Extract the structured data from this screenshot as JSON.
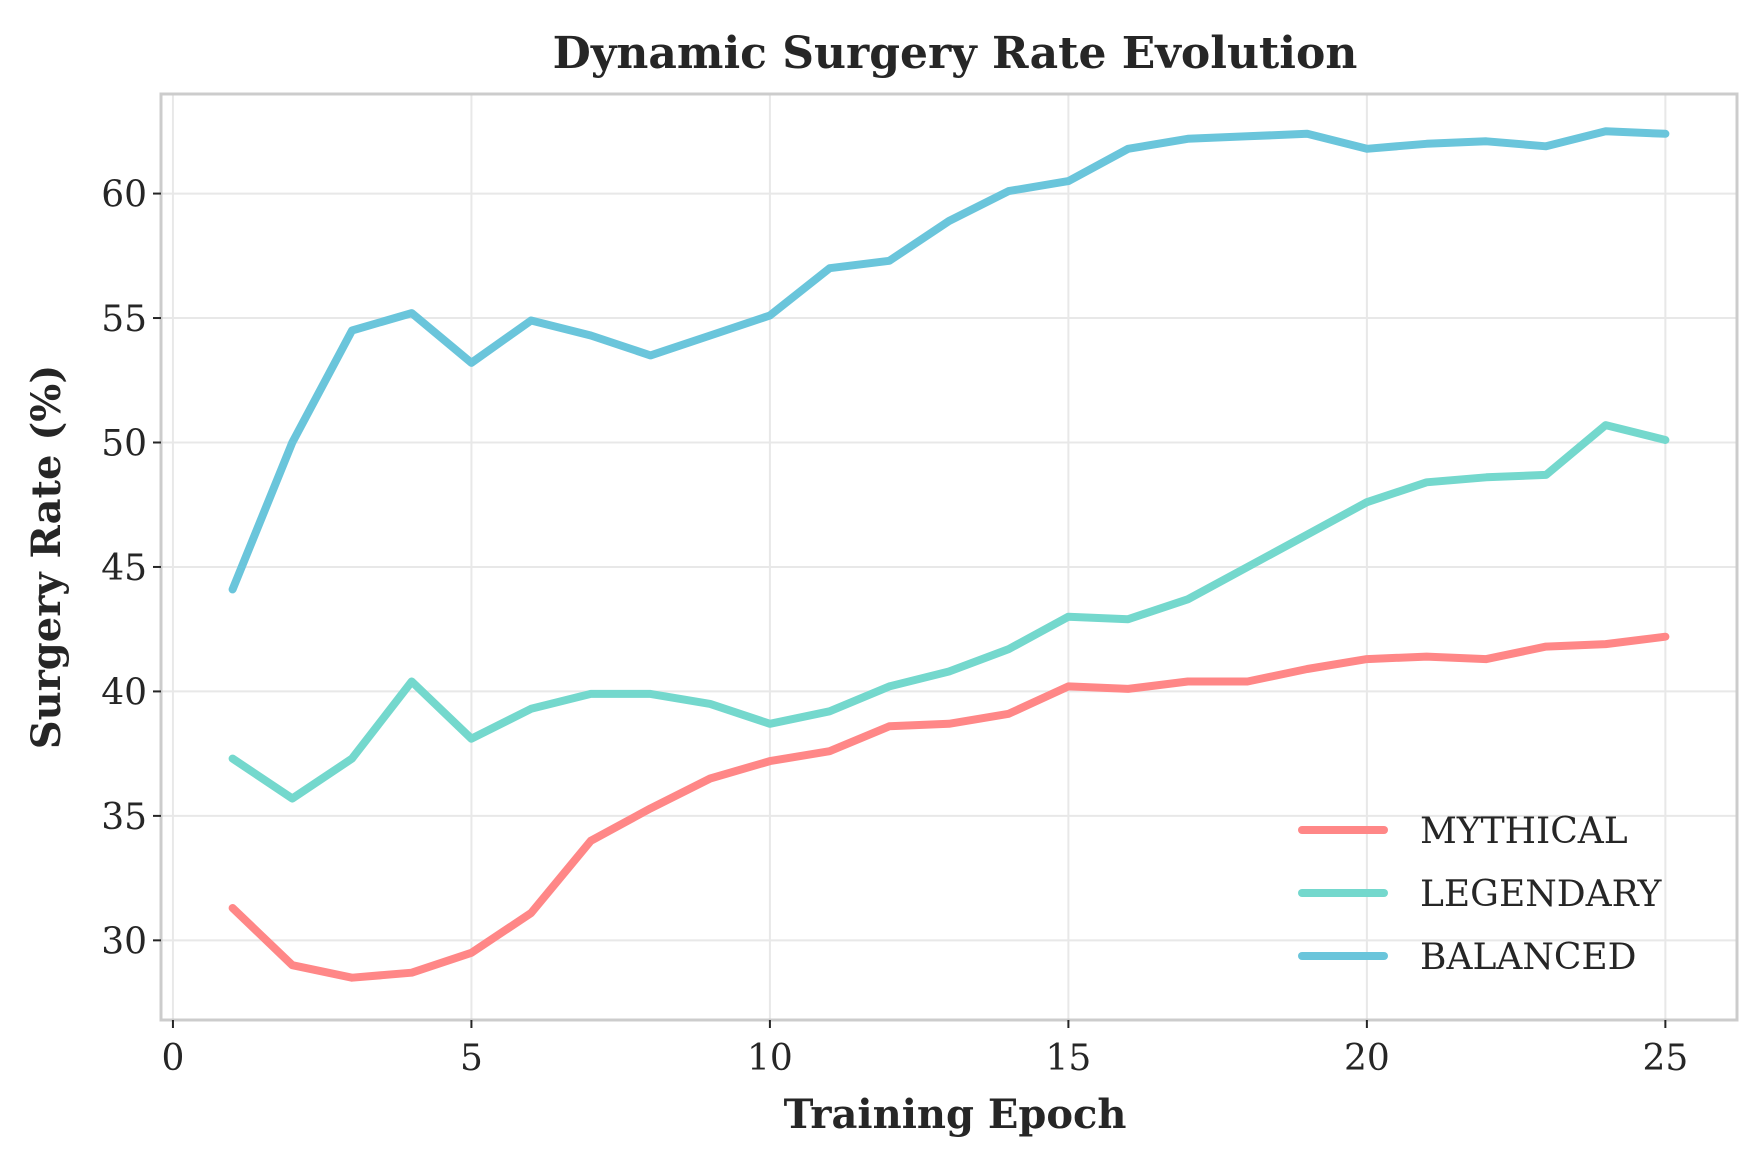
{
  "chart_data": {
    "type": "line",
    "title": "Dynamic Surgery Rate Evolution",
    "xlabel": "Training Epoch",
    "ylabel": "Surgery Rate (%)",
    "xlim": [
      -0.2,
      26.2
    ],
    "ylim": [
      26.8,
      64.0
    ],
    "xticks": [
      0,
      5,
      10,
      15,
      20,
      25
    ],
    "yticks": [
      30,
      35,
      40,
      45,
      50,
      55,
      60
    ],
    "grid": true,
    "legend_position": "lower-right",
    "x": [
      1,
      2,
      3,
      4,
      5,
      6,
      7,
      8,
      9,
      10,
      11,
      12,
      13,
      14,
      15,
      16,
      17,
      18,
      19,
      20,
      21,
      22,
      23,
      24,
      25
    ],
    "series": [
      {
        "name": "MYTHICAL",
        "color": "#ff8787",
        "values": [
          31.3,
          29.0,
          28.5,
          28.7,
          29.5,
          31.1,
          34.0,
          35.3,
          36.5,
          37.2,
          37.6,
          38.6,
          38.7,
          39.1,
          40.2,
          40.1,
          40.4,
          40.4,
          40.9,
          41.3,
          41.4,
          41.3,
          41.8,
          41.9,
          42.2
        ]
      },
      {
        "name": "LEGENDARY",
        "color": "#74d8cd",
        "values": [
          37.3,
          35.7,
          37.3,
          40.4,
          38.1,
          39.3,
          39.9,
          39.9,
          39.5,
          38.7,
          39.2,
          40.2,
          40.8,
          41.7,
          43.0,
          42.9,
          43.7,
          45.0,
          46.3,
          47.6,
          48.4,
          48.6,
          48.7,
          50.7,
          50.1
        ]
      },
      {
        "name": "BALANCED",
        "color": "#6ac5db",
        "values": [
          44.1,
          50.0,
          54.5,
          55.2,
          53.2,
          54.9,
          54.3,
          53.5,
          54.3,
          55.1,
          57.0,
          57.3,
          58.9,
          60.1,
          60.5,
          61.8,
          62.2,
          62.3,
          62.4,
          61.8,
          62.0,
          62.1,
          61.9,
          62.5,
          62.4
        ]
      }
    ]
  }
}
